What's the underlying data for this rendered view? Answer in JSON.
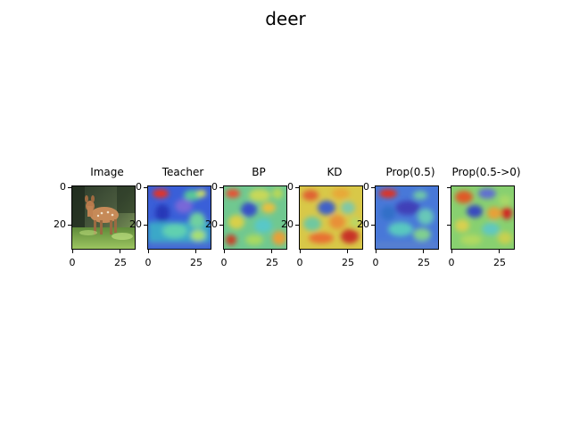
{
  "figure": {
    "title": "deer"
  },
  "panels": [
    {
      "title": "Image",
      "kind": "photo"
    },
    {
      "title": "Teacher",
      "kind": "heatmap"
    },
    {
      "title": "BP",
      "kind": "heatmap"
    },
    {
      "title": "KD",
      "kind": "heatmap"
    },
    {
      "title": "Prop(0.5)",
      "kind": "heatmap"
    },
    {
      "title": "Prop(0.5->0)",
      "kind": "heatmap"
    }
  ],
  "axes": {
    "x_ticks": [
      "0",
      "25"
    ],
    "y_ticks": [
      "0",
      "20"
    ]
  },
  "chart_data": {
    "type": "heatmap",
    "title": "deer",
    "panels": [
      "Image",
      "Teacher",
      "BP",
      "KD",
      "Prop(0.5)",
      "Prop(0.5->0)"
    ],
    "x_ticks": [
      0,
      25
    ],
    "y_ticks": [
      0,
      20
    ],
    "xlim": [
      -0.5,
      31.5
    ],
    "ylim": [
      31.5,
      -0.5
    ],
    "colormap": "jet",
    "image_size": [
      32,
      32
    ]
  }
}
